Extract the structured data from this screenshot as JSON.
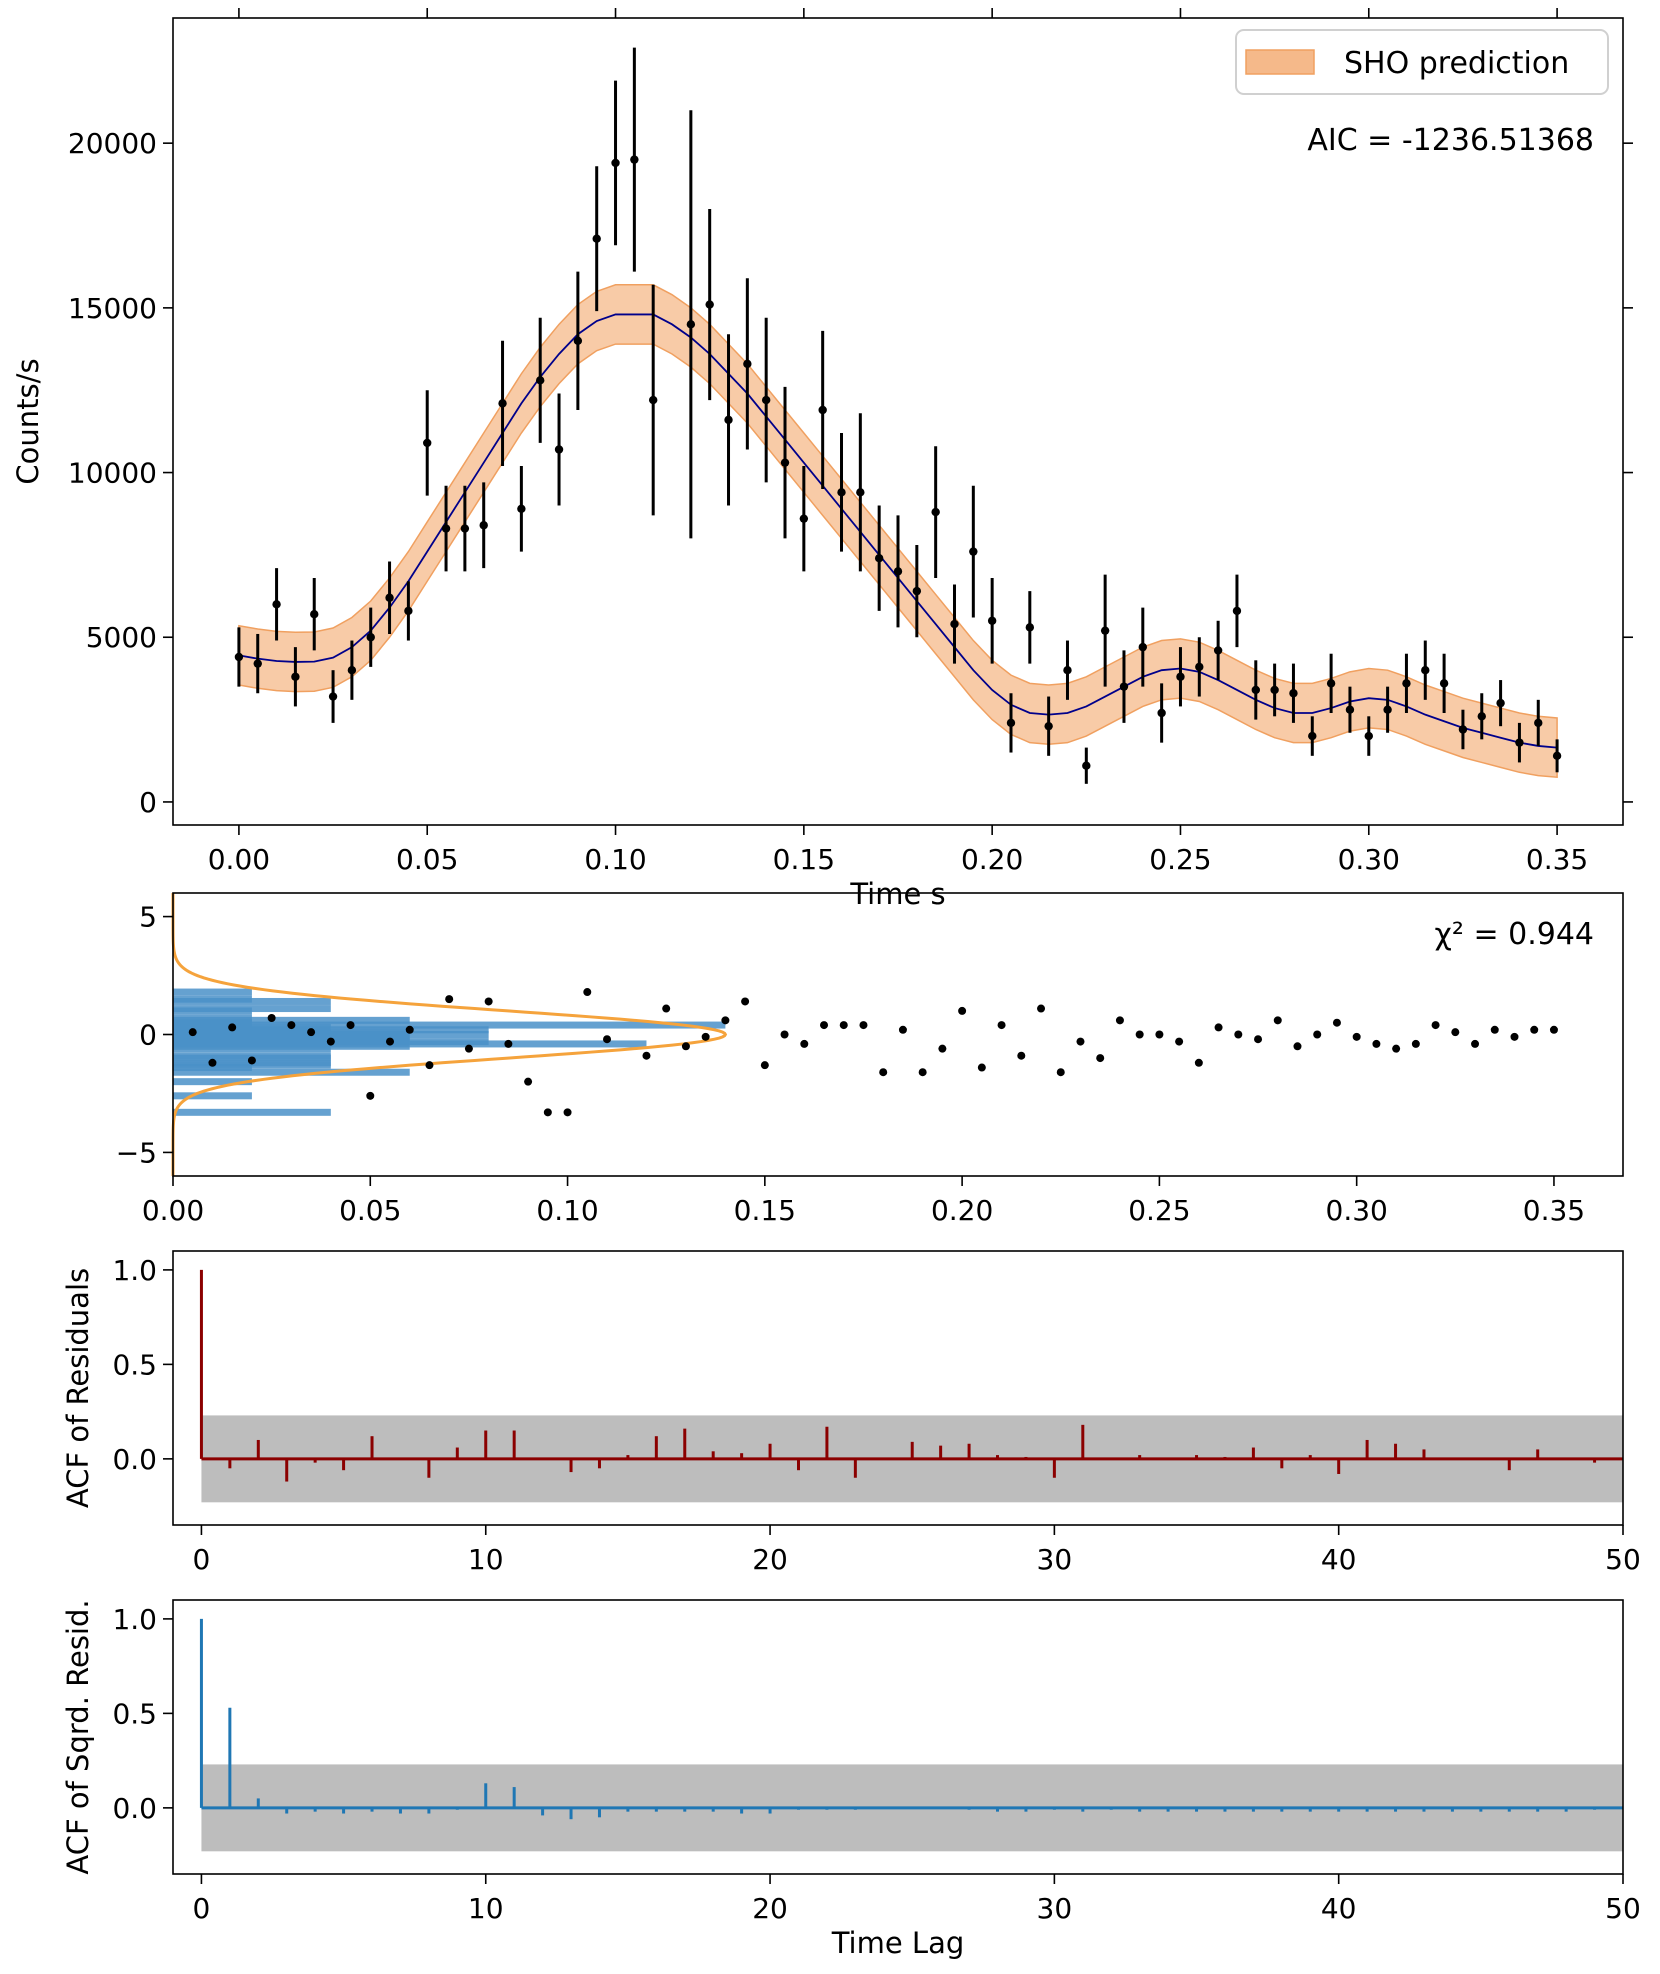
{
  "figure": {
    "description_free": true
  },
  "chart_data": [
    {
      "type": "scatter",
      "panel": "lightcurve",
      "xlabel": "Time s",
      "ylabel": "Counts/s",
      "xlim": [
        -0.0175,
        0.3675
      ],
      "ylim": [
        -700,
        23800
      ],
      "xticks": [
        0.0,
        0.05,
        0.1,
        0.15,
        0.2,
        0.25,
        0.3,
        0.35
      ],
      "xtick_labels": [
        "0.00",
        "0.05",
        "0.10",
        "0.15",
        "0.20",
        "0.25",
        "0.30",
        "0.35"
      ],
      "yticks": [
        0,
        5000,
        10000,
        15000,
        20000
      ],
      "ytick_labels": [
        "0",
        "5000",
        "10000",
        "15000",
        "20000"
      ],
      "legend": {
        "label": "SHO prediction",
        "placement": "top-right"
      },
      "annotation": "AIC = -1236.51368",
      "band_color": "#f5b98a",
      "line_color": "#00008b",
      "model": {
        "x": [
          0.0,
          0.005,
          0.01,
          0.015,
          0.02,
          0.025,
          0.03,
          0.035,
          0.04,
          0.045,
          0.05,
          0.055,
          0.06,
          0.065,
          0.07,
          0.075,
          0.08,
          0.085,
          0.09,
          0.095,
          0.1,
          0.105,
          0.11,
          0.115,
          0.12,
          0.125,
          0.13,
          0.135,
          0.14,
          0.145,
          0.15,
          0.155,
          0.16,
          0.165,
          0.17,
          0.175,
          0.18,
          0.185,
          0.19,
          0.195,
          0.2,
          0.205,
          0.21,
          0.215,
          0.22,
          0.225,
          0.23,
          0.235,
          0.24,
          0.245,
          0.25,
          0.255,
          0.26,
          0.265,
          0.27,
          0.275,
          0.28,
          0.285,
          0.29,
          0.295,
          0.3,
          0.305,
          0.31,
          0.315,
          0.32,
          0.325,
          0.33,
          0.335,
          0.34,
          0.345,
          0.35
        ],
        "y": [
          4450,
          4350,
          4280,
          4250,
          4260,
          4380,
          4700,
          5200,
          5900,
          6700,
          7600,
          8500,
          9400,
          10300,
          11200,
          12100,
          12900,
          13600,
          14200,
          14600,
          14800,
          14800,
          14800,
          14500,
          14100,
          13600,
          13000,
          12400,
          11700,
          11000,
          10300,
          9600,
          8900,
          8200,
          7500,
          6800,
          6100,
          5400,
          4700,
          4000,
          3400,
          2950,
          2700,
          2650,
          2700,
          2900,
          3200,
          3500,
          3800,
          4000,
          4050,
          3950,
          3700,
          3400,
          3100,
          2850,
          2700,
          2700,
          2850,
          3050,
          3150,
          3100,
          2900,
          2650,
          2450,
          2250,
          2100,
          1950,
          1800,
          1700,
          1650
        ],
        "band_halfwidth": 900
      },
      "points": {
        "x": [
          0.0,
          0.005,
          0.01,
          0.015,
          0.02,
          0.025,
          0.03,
          0.035,
          0.04,
          0.045,
          0.05,
          0.055,
          0.06,
          0.065,
          0.07,
          0.075,
          0.08,
          0.085,
          0.09,
          0.095,
          0.1,
          0.105,
          0.11,
          0.12,
          0.125,
          0.13,
          0.135,
          0.14,
          0.145,
          0.15,
          0.155,
          0.16,
          0.165,
          0.17,
          0.175,
          0.18,
          0.185,
          0.19,
          0.195,
          0.2,
          0.205,
          0.21,
          0.215,
          0.22,
          0.225,
          0.23,
          0.235,
          0.24,
          0.245,
          0.25,
          0.255,
          0.26,
          0.265,
          0.27,
          0.275,
          0.28,
          0.285,
          0.29,
          0.295,
          0.3,
          0.305,
          0.31,
          0.315,
          0.32,
          0.325,
          0.33,
          0.335,
          0.34,
          0.345,
          0.35
        ],
        "y": [
          4400,
          4200,
          6000,
          3800,
          5700,
          3200,
          4000,
          5000,
          6200,
          5800,
          10900,
          8300,
          8300,
          8400,
          12100,
          8900,
          12800,
          10700,
          14000,
          17100,
          19400,
          19500,
          12200,
          14500,
          15100,
          11600,
          13300,
          12200,
          10300,
          8600,
          11900,
          9400,
          9400,
          7400,
          7000,
          6400,
          8800,
          5400,
          7600,
          5500,
          2400,
          5300,
          2300,
          4000,
          1100,
          5200,
          3500,
          4700,
          2700,
          3800,
          4100,
          4600,
          5800,
          3400,
          3400,
          3300,
          2000,
          3600,
          2800,
          2000,
          2800,
          3600,
          4000,
          3600,
          2200,
          2600,
          3000,
          1800,
          2400,
          1400
        ],
        "err": [
          900,
          900,
          1100,
          900,
          1100,
          800,
          900,
          900,
          1100,
          900,
          1600,
          1300,
          1300,
          1300,
          1900,
          1300,
          1900,
          1700,
          2100,
          2200,
          2500,
          3400,
          3500,
          6500,
          2900,
          2600,
          2600,
          2500,
          2300,
          1600,
          2400,
          1800,
          2400,
          1600,
          1700,
          1400,
          2000,
          1200,
          2000,
          1300,
          900,
          1100,
          900,
          900,
          550,
          1700,
          1100,
          1200,
          900,
          900,
          900,
          900,
          1100,
          900,
          800,
          900,
          600,
          900,
          700,
          600,
          700,
          900,
          900,
          900,
          600,
          700,
          700,
          600,
          700,
          500
        ]
      }
    },
    {
      "type": "scatter",
      "panel": "residuals",
      "xlim": [
        0.0,
        0.3675
      ],
      "ylim": [
        -6,
        6
      ],
      "xticks": [
        0.0,
        0.05,
        0.1,
        0.15,
        0.2,
        0.25,
        0.3,
        0.35
      ],
      "xtick_labels": [
        "0.00",
        "0.05",
        "0.10",
        "0.15",
        "0.20",
        "0.25",
        "0.30",
        "0.35"
      ],
      "yticks": [
        -5,
        0,
        5
      ],
      "ytick_labels": [
        "−5",
        "0",
        "5"
      ],
      "annotation": "χ² = 0.944",
      "residuals": {
        "x": [
          0.005,
          0.01,
          0.015,
          0.02,
          0.025,
          0.03,
          0.035,
          0.04,
          0.045,
          0.05,
          0.055,
          0.06,
          0.065,
          0.07,
          0.075,
          0.08,
          0.085,
          0.09,
          0.095,
          0.1,
          0.105,
          0.11,
          0.12,
          0.125,
          0.13,
          0.135,
          0.14,
          0.145,
          0.15,
          0.155,
          0.16,
          0.165,
          0.17,
          0.175,
          0.18,
          0.185,
          0.19,
          0.195,
          0.2,
          0.205,
          0.21,
          0.215,
          0.22,
          0.225,
          0.23,
          0.235,
          0.24,
          0.245,
          0.25,
          0.255,
          0.26,
          0.265,
          0.27,
          0.275,
          0.28,
          0.285,
          0.29,
          0.295,
          0.3,
          0.305,
          0.31,
          0.315,
          0.32,
          0.325,
          0.33,
          0.335,
          0.34,
          0.345,
          0.35
        ],
        "y": [
          0.1,
          -1.2,
          0.3,
          -1.1,
          0.7,
          0.4,
          0.1,
          -0.3,
          0.4,
          -2.6,
          -0.3,
          0.2,
          -1.3,
          1.5,
          -0.6,
          1.4,
          -0.4,
          -2.0,
          -3.3,
          -3.3,
          1.8,
          -0.2,
          -0.9,
          1.1,
          -0.5,
          -0.1,
          0.6,
          1.4,
          -1.3,
          0.0,
          -0.4,
          0.4,
          0.4,
          0.4,
          -1.6,
          0.2,
          -1.6,
          -0.6,
          1.0,
          -1.4,
          0.4,
          -0.9,
          1.1,
          -1.6,
          -0.3,
          -1.0,
          0.6,
          0.0,
          0.0,
          -0.3,
          -1.2,
          0.3,
          0.0,
          -0.2,
          0.6,
          -0.5,
          0.0,
          0.5,
          -0.1,
          -0.4,
          -0.6,
          -0.4,
          0.4,
          0.1,
          -0.4,
          0.2,
          -0.1,
          0.2,
          0.2
        ],
        "point_color": "#000000"
      },
      "histogram": {
        "bin_centers": [
          -3.3,
          -2.6,
          -2.0,
          -1.6,
          -1.4,
          -1.3,
          -1.2,
          -1.0,
          -0.9,
          -0.6,
          -0.5,
          -0.4,
          -0.3,
          -0.2,
          -0.1,
          0.0,
          0.1,
          0.2,
          0.3,
          0.4,
          0.5,
          0.6,
          0.7,
          1.0,
          1.1,
          1.4,
          1.5,
          1.8
        ],
        "counts": [
          2,
          1,
          1,
          3,
          1,
          2,
          2,
          2,
          2,
          2,
          3,
          6,
          4,
          3,
          3,
          4,
          3,
          4,
          2,
          7,
          1,
          3,
          1,
          1,
          2,
          2,
          1,
          1
        ],
        "bin_width_x": 0.02,
        "color": "#4a90c8"
      },
      "gaussian": {
        "mean": 0,
        "sigma": 1,
        "peak_x": 0.14,
        "color": "#f5a33c"
      }
    },
    {
      "type": "bar",
      "panel": "acf_residuals",
      "ylabel": "ACF of Residuals",
      "xlim": [
        -1,
        50
      ],
      "ylim": [
        -0.35,
        1.1
      ],
      "xticks": [
        0,
        10,
        20,
        30,
        40,
        50
      ],
      "xtick_labels": [
        "0",
        "10",
        "20",
        "30",
        "40",
        "50"
      ],
      "yticks": [
        0.0,
        0.5,
        1.0
      ],
      "ytick_labels": [
        "0.0",
        "0.5",
        "1.0"
      ],
      "confidence_band": [
        -0.23,
        0.23
      ],
      "color": "#8b0000",
      "lags": [
        0,
        1,
        2,
        3,
        4,
        5,
        6,
        7,
        8,
        9,
        10,
        11,
        12,
        13,
        14,
        15,
        16,
        17,
        18,
        19,
        20,
        21,
        22,
        23,
        24,
        25,
        26,
        27,
        28,
        29,
        30,
        31,
        32,
        33,
        34,
        35,
        36,
        37,
        38,
        39,
        40,
        41,
        42,
        43,
        44,
        45,
        46,
        47,
        48,
        49
      ],
      "values": [
        1.0,
        -0.05,
        0.1,
        -0.12,
        -0.02,
        -0.06,
        0.12,
        0.0,
        -0.1,
        0.06,
        0.15,
        0.15,
        0.0,
        -0.07,
        -0.05,
        0.02,
        0.12,
        0.16,
        0.04,
        0.03,
        0.08,
        -0.06,
        0.17,
        -0.1,
        0.0,
        0.09,
        0.07,
        0.08,
        0.02,
        0.01,
        -0.1,
        0.18,
        0.0,
        0.02,
        0.0,
        0.02,
        0.01,
        0.06,
        -0.05,
        0.02,
        -0.08,
        0.1,
        0.08,
        0.05,
        0.0,
        0.0,
        -0.06,
        0.05,
        0.0,
        -0.02
      ]
    },
    {
      "type": "bar",
      "panel": "acf_squared",
      "xlabel": "Time Lag",
      "ylabel": "ACF of Sqrd. Resid.",
      "xlim": [
        -1,
        50
      ],
      "ylim": [
        -0.35,
        1.1
      ],
      "xticks": [
        0,
        10,
        20,
        30,
        40,
        50
      ],
      "xtick_labels": [
        "0",
        "10",
        "20",
        "30",
        "40",
        "50"
      ],
      "yticks": [
        0.0,
        0.5,
        1.0
      ],
      "ytick_labels": [
        "0.0",
        "0.5",
        "1.0"
      ],
      "confidence_band": [
        -0.23,
        0.23
      ],
      "color": "#1f77b4",
      "lags": [
        0,
        1,
        2,
        3,
        4,
        5,
        6,
        7,
        8,
        9,
        10,
        11,
        12,
        13,
        14,
        15,
        16,
        17,
        18,
        19,
        20,
        21,
        22,
        23,
        24,
        25,
        26,
        27,
        28,
        29,
        30,
        31,
        32,
        33,
        34,
        35,
        36,
        37,
        38,
        39,
        40,
        41,
        42,
        43,
        44,
        45,
        46,
        47,
        48,
        49
      ],
      "values": [
        1.0,
        0.53,
        0.05,
        -0.03,
        -0.02,
        -0.03,
        -0.02,
        -0.03,
        -0.03,
        -0.01,
        0.13,
        0.11,
        -0.04,
        -0.06,
        -0.05,
        -0.02,
        -0.02,
        -0.02,
        -0.02,
        -0.03,
        -0.03,
        -0.01,
        -0.01,
        -0.01,
        0.0,
        0.0,
        0.0,
        -0.01,
        -0.02,
        -0.02,
        -0.01,
        -0.02,
        -0.01,
        -0.02,
        -0.02,
        -0.02,
        -0.02,
        -0.02,
        -0.02,
        -0.02,
        -0.02,
        -0.02,
        -0.02,
        -0.02,
        -0.02,
        -0.02,
        -0.02,
        -0.02,
        -0.02,
        -0.01
      ]
    }
  ]
}
